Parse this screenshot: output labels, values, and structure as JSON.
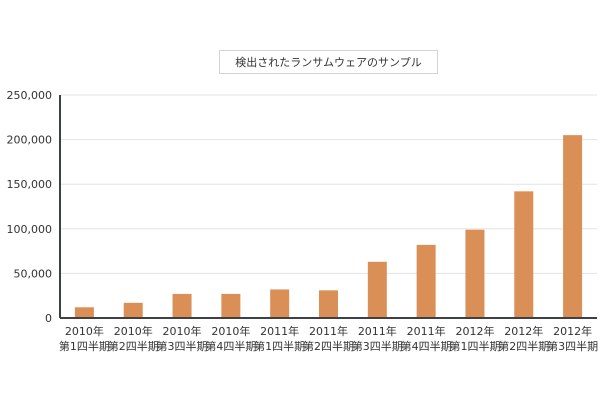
{
  "chart_data": {
    "type": "bar",
    "title": "検出されたランサムウェアのサンプル",
    "xlabel": "",
    "ylabel": "",
    "categories": [
      [
        "2010年",
        "第1四半期"
      ],
      [
        "2010年",
        "第2四半期"
      ],
      [
        "2010年",
        "第3四半期"
      ],
      [
        "2010年",
        "第4四半期"
      ],
      [
        "2011年",
        "第1四半期"
      ],
      [
        "2011年",
        "第2四半期"
      ],
      [
        "2011年",
        "第3四半期"
      ],
      [
        "2011年",
        "第4四半期"
      ],
      [
        "2012年",
        "第1四半期"
      ],
      [
        "2012年",
        "第2四半期"
      ],
      [
        "2012年",
        "第3四半期"
      ]
    ],
    "values": [
      12000,
      17000,
      27000,
      27000,
      32000,
      31000,
      63000,
      82000,
      99000,
      142000,
      205000
    ],
    "ylim": [
      0,
      250000
    ],
    "yticks": [
      0,
      50000,
      100000,
      150000,
      200000,
      250000
    ],
    "ytick_labels": [
      "0",
      "50,000",
      "100,000",
      "150,000",
      "200,000",
      "250,000"
    ],
    "grid": true,
    "legend": "none",
    "bar_color": "#d98f56",
    "axis_color": "#3d4045",
    "grid_color": "#e3e3e3"
  }
}
